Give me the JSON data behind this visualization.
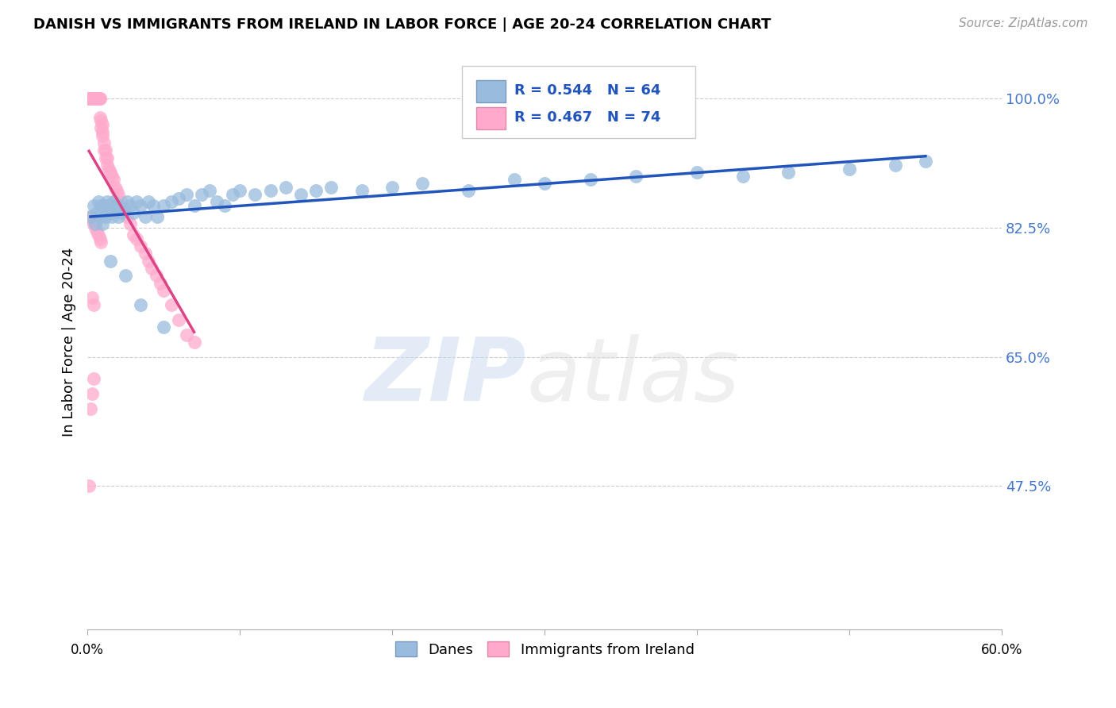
{
  "title": "DANISH VS IMMIGRANTS FROM IRELAND IN LABOR FORCE | AGE 20-24 CORRELATION CHART",
  "source": "Source: ZipAtlas.com",
  "ylabel": "In Labor Force | Age 20-24",
  "yaxis_labels": [
    "47.5%",
    "65.0%",
    "82.5%",
    "100.0%"
  ],
  "yaxis_values": [
    0.475,
    0.65,
    0.825,
    1.0
  ],
  "xlim": [
    0.0,
    0.6
  ],
  "ylim": [
    0.28,
    1.06
  ],
  "legend_blue_label": "R = 0.544   N = 64",
  "legend_pink_label": "R = 0.467   N = 74",
  "legend_bottom_blue": "Danes",
  "legend_bottom_pink": "Immigrants from Ireland",
  "blue_color": "#99BBDD",
  "pink_color": "#FFAACC",
  "blue_line_color": "#2255BB",
  "pink_line_color": "#DD4488",
  "danes_x": [
    0.002,
    0.004,
    0.005,
    0.006,
    0.007,
    0.008,
    0.009,
    0.01,
    0.011,
    0.012,
    0.013,
    0.014,
    0.015,
    0.016,
    0.017,
    0.018,
    0.02,
    0.021,
    0.022,
    0.024,
    0.026,
    0.028,
    0.03,
    0.032,
    0.035,
    0.038,
    0.04,
    0.043,
    0.046,
    0.05,
    0.055,
    0.06,
    0.065,
    0.07,
    0.075,
    0.08,
    0.085,
    0.09,
    0.095,
    0.1,
    0.11,
    0.12,
    0.13,
    0.14,
    0.15,
    0.16,
    0.18,
    0.2,
    0.22,
    0.25,
    0.28,
    0.3,
    0.33,
    0.36,
    0.4,
    0.43,
    0.46,
    0.5,
    0.53,
    0.55,
    0.015,
    0.025,
    0.035,
    0.05
  ],
  "danes_y": [
    0.84,
    0.855,
    0.83,
    0.845,
    0.86,
    0.84,
    0.855,
    0.83,
    0.855,
    0.84,
    0.86,
    0.855,
    0.845,
    0.84,
    0.86,
    0.855,
    0.84,
    0.855,
    0.845,
    0.85,
    0.86,
    0.855,
    0.845,
    0.86,
    0.855,
    0.84,
    0.86,
    0.855,
    0.84,
    0.855,
    0.86,
    0.865,
    0.87,
    0.855,
    0.87,
    0.875,
    0.86,
    0.855,
    0.87,
    0.875,
    0.87,
    0.875,
    0.88,
    0.87,
    0.875,
    0.88,
    0.875,
    0.88,
    0.885,
    0.875,
    0.89,
    0.885,
    0.89,
    0.895,
    0.9,
    0.895,
    0.9,
    0.905,
    0.91,
    0.915,
    0.78,
    0.76,
    0.72,
    0.69
  ],
  "ireland_x": [
    0.001,
    0.001,
    0.002,
    0.002,
    0.002,
    0.003,
    0.003,
    0.003,
    0.003,
    0.004,
    0.004,
    0.004,
    0.005,
    0.005,
    0.005,
    0.005,
    0.006,
    0.006,
    0.006,
    0.007,
    0.007,
    0.007,
    0.008,
    0.008,
    0.008,
    0.009,
    0.009,
    0.01,
    0.01,
    0.01,
    0.011,
    0.011,
    0.012,
    0.012,
    0.013,
    0.013,
    0.014,
    0.015,
    0.016,
    0.017,
    0.018,
    0.019,
    0.02,
    0.022,
    0.024,
    0.026,
    0.028,
    0.03,
    0.032,
    0.035,
    0.038,
    0.04,
    0.042,
    0.045,
    0.048,
    0.05,
    0.055,
    0.06,
    0.065,
    0.07,
    0.002,
    0.003,
    0.004,
    0.005,
    0.006,
    0.007,
    0.008,
    0.009,
    0.003,
    0.004,
    0.001,
    0.002,
    0.003,
    0.004
  ],
  "ireland_y": [
    1.0,
    1.0,
    1.0,
    1.0,
    1.0,
    1.0,
    1.0,
    1.0,
    1.0,
    1.0,
    1.0,
    1.0,
    1.0,
    1.0,
    1.0,
    1.0,
    1.0,
    1.0,
    1.0,
    1.0,
    1.0,
    1.0,
    1.0,
    1.0,
    0.975,
    0.97,
    0.96,
    0.965,
    0.955,
    0.95,
    0.94,
    0.93,
    0.93,
    0.92,
    0.92,
    0.91,
    0.905,
    0.9,
    0.895,
    0.89,
    0.88,
    0.875,
    0.87,
    0.86,
    0.845,
    0.84,
    0.83,
    0.815,
    0.81,
    0.8,
    0.79,
    0.78,
    0.77,
    0.76,
    0.75,
    0.74,
    0.72,
    0.7,
    0.68,
    0.67,
    0.84,
    0.835,
    0.83,
    0.825,
    0.82,
    0.815,
    0.81,
    0.805,
    0.73,
    0.72,
    0.475,
    0.58,
    0.6,
    0.62
  ]
}
